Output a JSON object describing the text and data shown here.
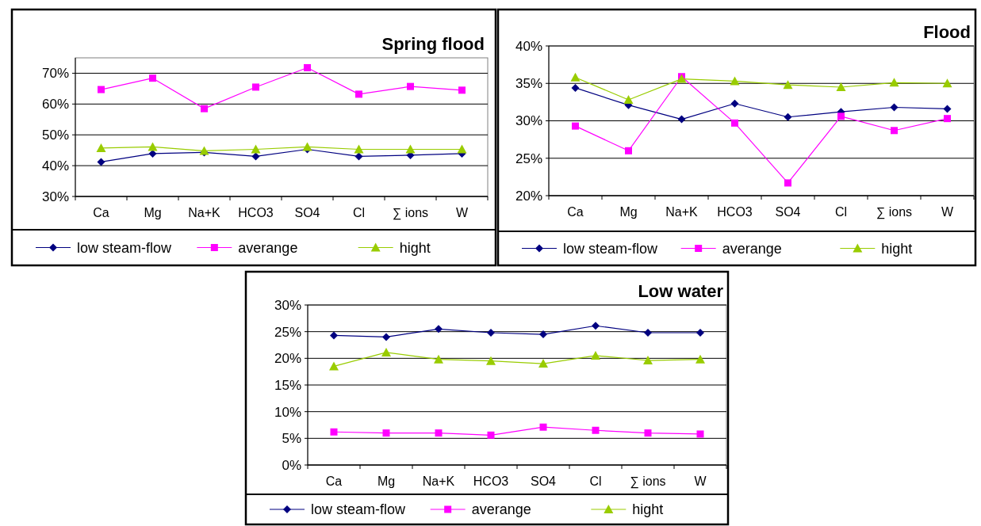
{
  "chart_data": [
    {
      "type": "line",
      "title": "Spring flood",
      "categories": [
        "Ca",
        "Mg",
        "Na+K",
        "HCO3",
        "SO4",
        "Cl",
        "∑ ions",
        "W"
      ],
      "ylim": [
        30,
        75
      ],
      "yticks": [
        {
          "value": 30,
          "label": "30%"
        },
        {
          "value": 40,
          "label": "40%"
        },
        {
          "value": 50,
          "label": "50%"
        },
        {
          "value": 60,
          "label": "60%"
        },
        {
          "value": 70,
          "label": "70%"
        }
      ],
      "grid": "y",
      "legend": "bottom",
      "series": [
        {
          "name": "low steam-flow",
          "color": "#000080",
          "marker": "diamond",
          "values": [
            41.2,
            43.9,
            44.3,
            43.0,
            45.3,
            43.0,
            43.4,
            43.9
          ]
        },
        {
          "name": "averange",
          "color": "#ff00ff",
          "marker": "square",
          "values": [
            64.7,
            68.4,
            58.5,
            65.5,
            71.8,
            63.2,
            65.7,
            64.5
          ]
        },
        {
          "name": "hight",
          "color": "#99cc00",
          "marker": "triangle",
          "values": [
            45.7,
            46.1,
            44.8,
            45.3,
            46.1,
            45.3,
            45.3,
            45.3
          ]
        }
      ]
    },
    {
      "type": "line",
      "title": "Flood",
      "categories": [
        "Ca",
        "Mg",
        "Na+K",
        "HCO3",
        "SO4",
        "Cl",
        "∑ ions",
        "W"
      ],
      "ylim": [
        20,
        40
      ],
      "yticks": [
        {
          "value": 20,
          "label": "20%"
        },
        {
          "value": 25,
          "label": "25%"
        },
        {
          "value": 30,
          "label": "30%"
        },
        {
          "value": 35,
          "label": "35%"
        },
        {
          "value": 40,
          "label": "40%"
        }
      ],
      "grid": "y",
      "legend": "bottom",
      "series": [
        {
          "name": "low steam-flow",
          "color": "#000080",
          "marker": "diamond",
          "values": [
            34.4,
            32.1,
            30.2,
            32.3,
            30.5,
            31.2,
            31.8,
            31.6
          ]
        },
        {
          "name": "averange",
          "color": "#ff00ff",
          "marker": "square",
          "values": [
            29.3,
            26.0,
            35.9,
            29.7,
            21.7,
            30.6,
            28.7,
            30.3
          ]
        },
        {
          "name": "hight",
          "color": "#99cc00",
          "marker": "triangle",
          "values": [
            35.8,
            32.8,
            35.6,
            35.3,
            34.8,
            34.5,
            35.1,
            35.0
          ]
        }
      ]
    },
    {
      "type": "line",
      "title": "Low water",
      "categories": [
        "Ca",
        "Mg",
        "Na+K",
        "HCO3",
        "SO4",
        "Cl",
        "∑ ions",
        "W"
      ],
      "ylim": [
        0,
        30
      ],
      "yticks": [
        {
          "value": 0,
          "label": "0%"
        },
        {
          "value": 5,
          "label": "5%"
        },
        {
          "value": 10,
          "label": "10%"
        },
        {
          "value": 15,
          "label": "15%"
        },
        {
          "value": 20,
          "label": "20%"
        },
        {
          "value": 25,
          "label": "25%"
        },
        {
          "value": 30,
          "label": "30%"
        }
      ],
      "grid": "y",
      "legend": "bottom",
      "series": [
        {
          "name": "low steam-flow",
          "color": "#000080",
          "marker": "diamond",
          "values": [
            24.3,
            24.0,
            25.5,
            24.8,
            24.5,
            26.1,
            24.8,
            24.8
          ]
        },
        {
          "name": "averange",
          "color": "#ff00ff",
          "marker": "square",
          "values": [
            6.2,
            6.0,
            6.0,
            5.6,
            7.1,
            6.5,
            6.0,
            5.8
          ]
        },
        {
          "name": "hight",
          "color": "#99cc00",
          "marker": "triangle",
          "values": [
            18.5,
            21.1,
            19.8,
            19.5,
            19.0,
            20.5,
            19.6,
            19.8
          ]
        }
      ]
    }
  ]
}
